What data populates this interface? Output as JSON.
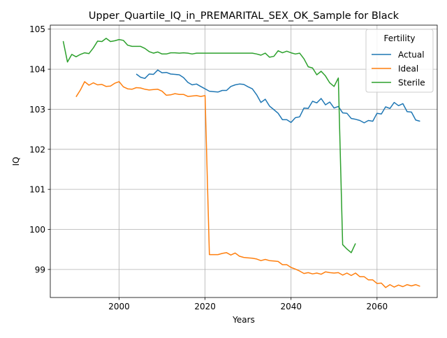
{
  "chart_data": {
    "type": "line",
    "title": "Upper_Quartile_IQ_in_PREMARITAL_SEX_OK_Sample for Black",
    "xlabel": "Years",
    "ylabel": "IQ",
    "xlim": [
      1984,
      2074
    ],
    "ylim": [
      98.3,
      105.1
    ],
    "xticks": [
      2000,
      2020,
      2040,
      2060
    ],
    "yticks": [
      99,
      100,
      101,
      102,
      103,
      104,
      105
    ],
    "grid": true,
    "legend": {
      "title": "Fertility",
      "position": "top-right"
    },
    "series": [
      {
        "name": "Actual",
        "color": "#1f77b4",
        "x": [
          2004,
          2005,
          2006,
          2007,
          2008,
          2009,
          2010,
          2011,
          2012,
          2013,
          2014,
          2015,
          2016,
          2017,
          2018,
          2019,
          2020,
          2021,
          2022,
          2023,
          2024,
          2025,
          2026,
          2027,
          2028,
          2029,
          2030,
          2031,
          2032,
          2033,
          2034,
          2035,
          2036,
          2037,
          2038,
          2039,
          2040,
          2041,
          2042,
          2043,
          2044,
          2045,
          2046,
          2047,
          2048,
          2049,
          2050,
          2051,
          2052,
          2053,
          2054,
          2055,
          2056,
          2057,
          2058,
          2059,
          2060,
          2061,
          2062,
          2063,
          2064,
          2065,
          2066,
          2067,
          2068,
          2069,
          2070
        ],
        "values": [
          103.88,
          103.8,
          103.77,
          103.88,
          103.87,
          103.98,
          103.91,
          103.92,
          103.88,
          103.87,
          103.86,
          103.79,
          103.67,
          103.61,
          103.63,
          103.57,
          103.51,
          103.45,
          103.44,
          103.43,
          103.47,
          103.47,
          103.57,
          103.61,
          103.63,
          103.62,
          103.56,
          103.51,
          103.36,
          103.17,
          103.25,
          103.08,
          102.99,
          102.9,
          102.74,
          102.74,
          102.67,
          102.79,
          102.81,
          103.03,
          103.02,
          103.2,
          103.16,
          103.27,
          103.11,
          103.18,
          103.03,
          103.07,
          102.91,
          102.9,
          102.77,
          102.75,
          102.72,
          102.66,
          102.72,
          102.7,
          102.9,
          102.88,
          103.06,
          103.02,
          103.17,
          103.09,
          103.14,
          102.94,
          102.93,
          102.73,
          102.7
        ]
      },
      {
        "name": "Ideal",
        "color": "#ff7f0e",
        "x": [
          1990,
          1991,
          1992,
          1993,
          1994,
          1995,
          1996,
          1997,
          1998,
          1999,
          2000,
          2001,
          2002,
          2003,
          2004,
          2005,
          2006,
          2007,
          2008,
          2009,
          2010,
          2011,
          2012,
          2013,
          2014,
          2015,
          2016,
          2017,
          2018,
          2019,
          2020,
          2021,
          2022,
          2023,
          2024,
          2025,
          2026,
          2027,
          2028,
          2029,
          2030,
          2031,
          2032,
          2033,
          2034,
          2035,
          2036,
          2037,
          2038,
          2039,
          2040,
          2041,
          2042,
          2043,
          2044,
          2045,
          2046,
          2047,
          2048,
          2049,
          2050,
          2051,
          2052,
          2053,
          2054,
          2055,
          2056,
          2057,
          2058,
          2059,
          2060,
          2061,
          2062,
          2063,
          2064,
          2065,
          2066,
          2067,
          2068,
          2069,
          2070
        ],
        "values": [
          103.31,
          103.48,
          103.69,
          103.6,
          103.66,
          103.61,
          103.62,
          103.57,
          103.58,
          103.65,
          103.69,
          103.56,
          103.51,
          103.5,
          103.54,
          103.53,
          103.5,
          103.48,
          103.49,
          103.5,
          103.45,
          103.35,
          103.36,
          103.39,
          103.37,
          103.37,
          103.32,
          103.33,
          103.34,
          103.32,
          103.34,
          99.37,
          99.37,
          99.37,
          99.4,
          99.42,
          99.36,
          99.41,
          99.33,
          99.3,
          99.29,
          99.28,
          99.26,
          99.22,
          99.25,
          99.22,
          99.21,
          99.2,
          99.12,
          99.12,
          99.05,
          99.01,
          98.96,
          98.9,
          98.92,
          98.89,
          98.91,
          98.88,
          98.94,
          98.92,
          98.91,
          98.92,
          98.86,
          98.91,
          98.85,
          98.91,
          98.82,
          98.82,
          98.74,
          98.74,
          98.65,
          98.66,
          98.55,
          98.62,
          98.56,
          98.61,
          98.57,
          98.62,
          98.59,
          98.62,
          98.58
        ]
      },
      {
        "name": "Sterile",
        "color": "#2ca02c",
        "x": [
          1987,
          1988,
          1989,
          1990,
          1991,
          1992,
          1993,
          1994,
          1995,
          1996,
          1997,
          1998,
          1999,
          2000,
          2001,
          2002,
          2003,
          2004,
          2005,
          2006,
          2007,
          2008,
          2009,
          2010,
          2011,
          2012,
          2013,
          2014,
          2015,
          2016,
          2017,
          2018,
          2019,
          2020,
          2021,
          2022,
          2023,
          2024,
          2025,
          2026,
          2027,
          2028,
          2029,
          2030,
          2031,
          2032,
          2033,
          2034,
          2035,
          2036,
          2037,
          2038,
          2039,
          2040,
          2041,
          2042,
          2043,
          2044,
          2045,
          2046,
          2047,
          2048,
          2049,
          2050,
          2051,
          2052,
          2053,
          2054,
          2055
        ],
        "values": [
          104.7,
          104.18,
          104.37,
          104.31,
          104.37,
          104.41,
          104.39,
          104.53,
          104.7,
          104.69,
          104.77,
          104.69,
          104.71,
          104.74,
          104.72,
          104.6,
          104.57,
          104.57,
          104.57,
          104.52,
          104.44,
          104.4,
          104.43,
          104.38,
          104.38,
          104.41,
          104.41,
          104.4,
          104.41,
          104.4,
          104.38,
          104.4,
          104.4,
          104.4,
          104.4,
          104.4,
          104.4,
          104.4,
          104.4,
          104.4,
          104.4,
          104.4,
          104.4,
          104.4,
          104.4,
          104.38,
          104.35,
          104.4,
          104.3,
          104.32,
          104.46,
          104.41,
          104.45,
          104.41,
          104.38,
          104.4,
          104.26,
          104.06,
          104.03,
          103.86,
          103.95,
          103.83,
          103.66,
          103.57,
          103.78,
          99.62,
          99.51,
          99.42,
          99.65
        ]
      }
    ]
  }
}
